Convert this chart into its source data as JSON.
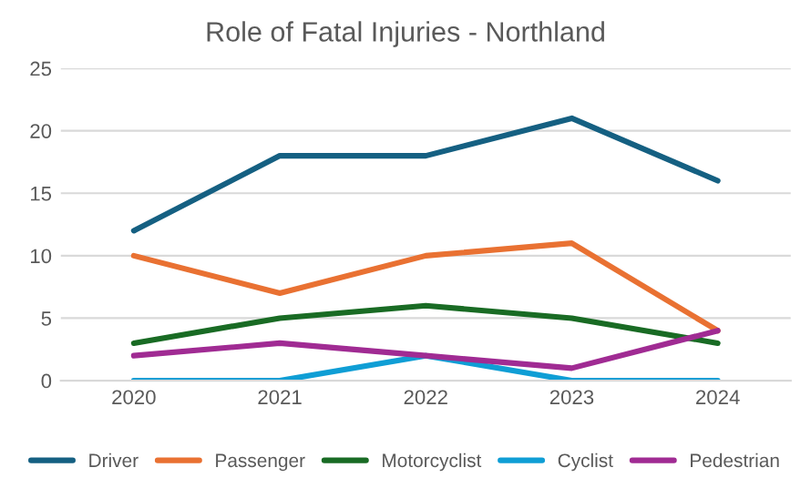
{
  "chart_data": {
    "type": "line",
    "title": "Role of Fatal Injuries - Northland",
    "categories": [
      "2020",
      "2021",
      "2022",
      "2023",
      "2024"
    ],
    "series": [
      {
        "name": "Driver",
        "color": "#156082",
        "values": [
          12,
          18,
          18,
          21,
          16
        ]
      },
      {
        "name": "Passenger",
        "color": "#e97132",
        "values": [
          10,
          7,
          10,
          11,
          4
        ]
      },
      {
        "name": "Motorcyclist",
        "color": "#196b24",
        "values": [
          3,
          5,
          6,
          5,
          3
        ]
      },
      {
        "name": "Cyclist",
        "color": "#0f9ed5",
        "values": [
          0,
          0,
          2,
          0,
          0
        ]
      },
      {
        "name": "Pedestrian",
        "color": "#a02b93",
        "values": [
          2,
          3,
          2,
          1,
          4
        ]
      }
    ],
    "ylim": [
      0,
      25
    ],
    "yticks": [
      0,
      5,
      10,
      15,
      20,
      25
    ],
    "grid": "y",
    "legend": "bottom",
    "marker": "none",
    "line_style": "solid"
  }
}
